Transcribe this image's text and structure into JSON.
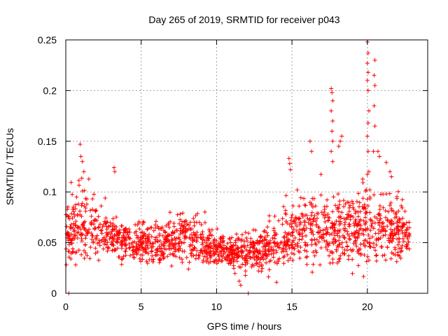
{
  "chart_data": {
    "type": "scatter",
    "title": "Day 265 of 2019, SRMTID for receiver p043",
    "xlabel": "GPS time / hours",
    "ylabel": "SRMTID / TECUs",
    "xlim": [
      0,
      24
    ],
    "ylim": [
      0,
      0.25
    ],
    "x_ticks": [
      0,
      5,
      10,
      15,
      20
    ],
    "x_tick_labels": [
      "0",
      "5",
      "10",
      "15",
      "20"
    ],
    "y_ticks": [
      0,
      0.05,
      0.1,
      0.15,
      0.2,
      0.25
    ],
    "y_tick_labels": [
      "0",
      "0.05",
      "0.1",
      "0.15",
      "0.2",
      "0.25"
    ],
    "grid": true,
    "marker": "+",
    "series": [
      {
        "name": "SRMTID",
        "color": "#ff0000",
        "profile_note": "approximate envelope of ~2500 plus markers; mean/spread in TECU by hour",
        "profile": [
          {
            "t": 0.0,
            "mean": 0.062,
            "spread": 0.022
          },
          {
            "t": 1.0,
            "mean": 0.07,
            "spread": 0.026
          },
          {
            "t": 2.0,
            "mean": 0.06,
            "spread": 0.018
          },
          {
            "t": 3.0,
            "mean": 0.055,
            "spread": 0.015
          },
          {
            "t": 4.0,
            "mean": 0.052,
            "spread": 0.014
          },
          {
            "t": 5.0,
            "mean": 0.05,
            "spread": 0.013
          },
          {
            "t": 6.0,
            "mean": 0.049,
            "spread": 0.013
          },
          {
            "t": 7.0,
            "mean": 0.051,
            "spread": 0.013
          },
          {
            "t": 8.0,
            "mean": 0.057,
            "spread": 0.015
          },
          {
            "t": 9.0,
            "mean": 0.048,
            "spread": 0.013
          },
          {
            "t": 10.0,
            "mean": 0.044,
            "spread": 0.011
          },
          {
            "t": 11.0,
            "mean": 0.04,
            "spread": 0.011
          },
          {
            "t": 12.0,
            "mean": 0.038,
            "spread": 0.012
          },
          {
            "t": 13.0,
            "mean": 0.043,
            "spread": 0.014
          },
          {
            "t": 14.0,
            "mean": 0.052,
            "spread": 0.018
          },
          {
            "t": 15.0,
            "mean": 0.06,
            "spread": 0.02
          },
          {
            "t": 16.0,
            "mean": 0.063,
            "spread": 0.021
          },
          {
            "t": 17.0,
            "mean": 0.065,
            "spread": 0.023
          },
          {
            "t": 18.0,
            "mean": 0.062,
            "spread": 0.022
          },
          {
            "t": 19.0,
            "mean": 0.06,
            "spread": 0.022
          },
          {
            "t": 20.0,
            "mean": 0.068,
            "spread": 0.026
          },
          {
            "t": 21.0,
            "mean": 0.066,
            "spread": 0.024
          },
          {
            "t": 22.0,
            "mean": 0.06,
            "spread": 0.02
          },
          {
            "t": 22.8,
            "mean": 0.058,
            "spread": 0.018
          }
        ],
        "highlights": [
          {
            "x": 0.95,
            "y": 0.147
          },
          {
            "x": 1.0,
            "y": 0.135
          },
          {
            "x": 1.1,
            "y": 0.13
          },
          {
            "x": 1.2,
            "y": 0.12
          },
          {
            "x": 3.2,
            "y": 0.124
          },
          {
            "x": 3.25,
            "y": 0.12
          },
          {
            "x": 14.8,
            "y": 0.133
          },
          {
            "x": 14.85,
            "y": 0.128
          },
          {
            "x": 14.9,
            "y": 0.122
          },
          {
            "x": 16.2,
            "y": 0.15
          },
          {
            "x": 16.3,
            "y": 0.14
          },
          {
            "x": 17.6,
            "y": 0.202
          },
          {
            "x": 17.65,
            "y": 0.198
          },
          {
            "x": 17.7,
            "y": 0.19
          },
          {
            "x": 17.6,
            "y": 0.18
          },
          {
            "x": 17.7,
            "y": 0.17
          },
          {
            "x": 17.65,
            "y": 0.16
          },
          {
            "x": 17.7,
            "y": 0.15
          },
          {
            "x": 17.6,
            "y": 0.14
          },
          {
            "x": 17.7,
            "y": 0.13
          },
          {
            "x": 18.3,
            "y": 0.155
          },
          {
            "x": 18.2,
            "y": 0.15
          },
          {
            "x": 18.1,
            "y": 0.145
          },
          {
            "x": 20.0,
            "y": 0.248
          },
          {
            "x": 20.05,
            "y": 0.237
          },
          {
            "x": 20.0,
            "y": 0.227
          },
          {
            "x": 20.05,
            "y": 0.218
          },
          {
            "x": 20.0,
            "y": 0.21
          },
          {
            "x": 20.05,
            "y": 0.2
          },
          {
            "x": 20.1,
            "y": 0.18
          },
          {
            "x": 20.05,
            "y": 0.168
          },
          {
            "x": 20.0,
            "y": 0.155
          },
          {
            "x": 20.05,
            "y": 0.14
          },
          {
            "x": 20.1,
            "y": 0.12
          },
          {
            "x": 20.5,
            "y": 0.23
          },
          {
            "x": 20.45,
            "y": 0.215
          },
          {
            "x": 20.5,
            "y": 0.205
          },
          {
            "x": 20.45,
            "y": 0.185
          },
          {
            "x": 20.5,
            "y": 0.165
          },
          {
            "x": 20.4,
            "y": 0.14
          },
          {
            "x": 20.7,
            "y": 0.14
          },
          {
            "x": 20.8,
            "y": 0.135
          },
          {
            "x": 21.5,
            "y": 0.12
          },
          {
            "x": 21.6,
            "y": 0.115
          },
          {
            "x": 0.2,
            "y": 0.0
          },
          {
            "x": 12.1,
            "y": 0.0
          },
          {
            "x": 11.6,
            "y": 0.008
          },
          {
            "x": 11.5,
            "y": 0.012
          }
        ]
      }
    ]
  }
}
